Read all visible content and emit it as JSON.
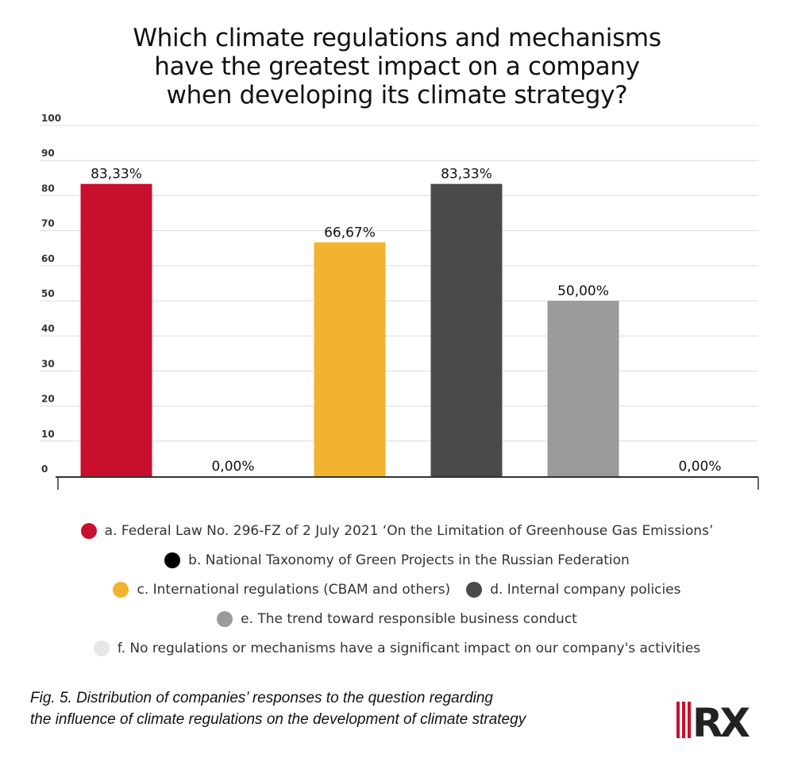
{
  "title_lines": [
    "Which climate regulations and mechanisms",
    "have the greatest impact on a company",
    "when developing its climate strategy?"
  ],
  "chart_data": {
    "type": "bar",
    "title": "Which climate regulations and mechanisms have the greatest impact on a company when developing its climate strategy?",
    "categories": [
      "a",
      "b",
      "c",
      "d",
      "e",
      "f"
    ],
    "values": [
      83.33,
      0,
      66.67,
      83.33,
      50.0,
      0
    ],
    "value_labels": [
      "83,33%",
      "0,00%",
      "66,67%",
      "83,33%",
      "50,00%",
      "0,00%"
    ],
    "colors": [
      "#c8102e",
      "#000000",
      "#f2b330",
      "#4a4a4a",
      "#9b9b9b",
      "#e6e6e6"
    ],
    "ylim": [
      0,
      100
    ],
    "yticks": [
      "0",
      "10",
      "20",
      "30",
      "40",
      "50",
      "60",
      "70",
      "80",
      "90",
      "100"
    ],
    "grid": true,
    "legend_position": "bottom"
  },
  "legend": [
    [
      {
        "label": "a. Federal Law No. 296-FZ of 2 July 2021 ‘On the Limitation of Greenhouse Gas Emissions’",
        "color": "#c8102e"
      }
    ],
    [
      {
        "label": "b. National Taxonomy of Green Projects in the Russian Federation",
        "color": "#000000"
      }
    ],
    [
      {
        "label": "c. International regulations (CBAM and others)",
        "color": "#f2b330"
      },
      {
        "label": "d. Internal company policies",
        "color": "#4a4a4a"
      }
    ],
    [
      {
        "label": "e. The trend toward responsible business conduct",
        "color": "#9b9b9b"
      }
    ],
    [
      {
        "label": "f. No regulations or mechanisms have a significant impact on our company's activities",
        "color": "#e6e6e6"
      }
    ]
  ],
  "caption_lines": [
    "Fig. 5. Distribution of companies’ responses to the question regarding",
    "the influence of climate regulations on the development of climate strategy"
  ],
  "logo": {
    "text": "RX",
    "color": "#c8102e"
  }
}
